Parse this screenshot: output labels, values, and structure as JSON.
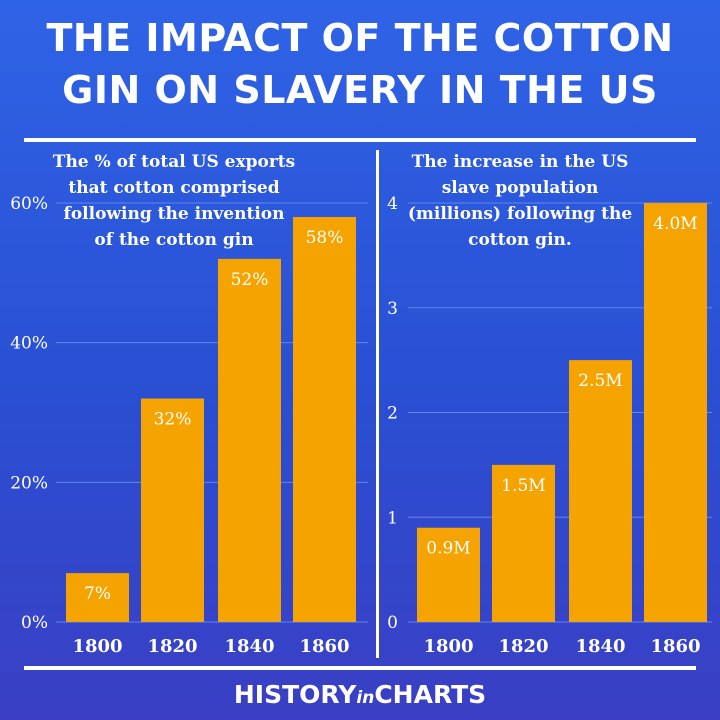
{
  "title_line1": "THE IMPACT OF THE COTTON",
  "title_line2": "GIN ON SLAVERY IN THE US",
  "footer": {
    "part1": "HISTORY",
    "part2": "in",
    "part3": "CHARTS"
  },
  "colors": {
    "bar": "#f5a300",
    "text": "#ffffff",
    "grid": "#5f86ee"
  },
  "chart_data": [
    {
      "type": "bar",
      "title": "The % of total US exports that cotton comprised following the invention of the cotton gin",
      "title_lines": [
        "The % of total US exports",
        "that cotton comprised",
        "following the invention",
        "of the cotton gin"
      ],
      "categories": [
        "1800",
        "1820",
        "1840",
        "1860"
      ],
      "values": [
        7,
        32,
        52,
        58
      ],
      "data_labels": [
        "7%",
        "32%",
        "52%",
        "58%"
      ],
      "ylim": [
        0,
        60
      ],
      "yticks": [
        0,
        20,
        40,
        60
      ],
      "ytick_labels": [
        "0%",
        "20%",
        "40%",
        "60%"
      ],
      "grid": true,
      "xlabel": "",
      "ylabel": ""
    },
    {
      "type": "bar",
      "title": "The increase in the US slave population (millions) following the cotton gin.",
      "title_lines": [
        "The increase in the US",
        "slave population",
        "(millions) following the",
        "cotton gin."
      ],
      "categories": [
        "1800",
        "1820",
        "1840",
        "1860"
      ],
      "values": [
        0.9,
        1.5,
        2.5,
        4.0
      ],
      "data_labels": [
        "0.9M",
        "1.5M",
        "2.5M",
        "4.0M"
      ],
      "ylim": [
        0,
        4
      ],
      "yticks": [
        0,
        1,
        2,
        3,
        4
      ],
      "ytick_labels": [
        "0",
        "1",
        "2",
        "3",
        "4"
      ],
      "grid": true,
      "xlabel": "",
      "ylabel": ""
    }
  ]
}
